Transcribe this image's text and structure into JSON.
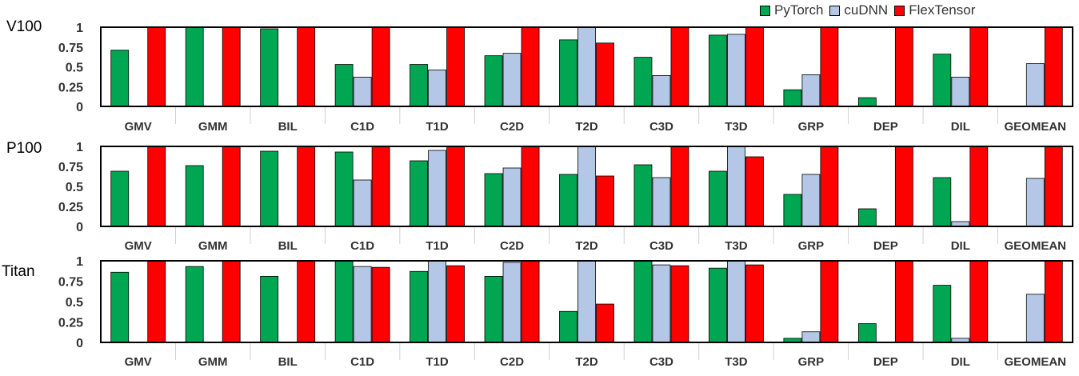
{
  "legend_placement": "top-right",
  "colors": {
    "PyTorch": "#00a651",
    "cuDNN": "#b4c7e7",
    "FlexTensor": "#ff0000"
  },
  "chart_data": [
    {
      "type": "bar",
      "panel_label": "V100",
      "categories": [
        "GMV",
        "GMM",
        "BIL",
        "C1D",
        "T1D",
        "C2D",
        "T2D",
        "C3D",
        "T3D",
        "GRP",
        "DEP",
        "DIL",
        "GEOMEAN"
      ],
      "ylim": [
        0,
        1
      ],
      "yticks": [
        "0",
        "0.25",
        "0.5",
        "0.75",
        "1"
      ],
      "series": [
        {
          "name": "PyTorch",
          "values": [
            0.71,
            1.0,
            0.98,
            0.53,
            0.53,
            0.64,
            0.84,
            0.62,
            0.9,
            0.21,
            0.11,
            0.66,
            0
          ]
        },
        {
          "name": "cuDNN",
          "values": [
            0,
            0,
            0,
            0.37,
            0.46,
            0.67,
            1.0,
            0.39,
            0.91,
            0.4,
            0,
            0.37,
            0.54
          ]
        },
        {
          "name": "FlexTensor",
          "values": [
            1,
            1,
            1,
            1,
            1,
            1,
            0.8,
            1,
            1,
            1,
            1,
            1,
            1
          ]
        }
      ]
    },
    {
      "type": "bar",
      "panel_label": "P100",
      "categories": [
        "GMV",
        "GMM",
        "BIL",
        "C1D",
        "T1D",
        "C2D",
        "T2D",
        "C3D",
        "T3D",
        "GRP",
        "DEP",
        "DIL",
        "GEOMEAN"
      ],
      "ylim": [
        0,
        1
      ],
      "yticks": [
        "0",
        "0.25",
        "0.5",
        "0.75",
        "1"
      ],
      "series": [
        {
          "name": "PyTorch",
          "values": [
            0.69,
            0.76,
            0.94,
            0.93,
            0.82,
            0.66,
            0.65,
            0.77,
            0.69,
            0.4,
            0.22,
            0.61,
            0
          ]
        },
        {
          "name": "cuDNN",
          "values": [
            0,
            0,
            0,
            0.58,
            0.95,
            0.73,
            1.0,
            0.61,
            1.0,
            0.65,
            0,
            0.06,
            0.6
          ]
        },
        {
          "name": "FlexTensor",
          "values": [
            1,
            1,
            1,
            1,
            1,
            1,
            0.63,
            1,
            0.87,
            1,
            1,
            1,
            1
          ]
        }
      ]
    },
    {
      "type": "bar",
      "panel_label": "Titan",
      "categories": [
        "GMV",
        "GMM",
        "BIL",
        "C1D",
        "T1D",
        "C2D",
        "T2D",
        "C3D",
        "T3D",
        "GRP",
        "DEP",
        "DIL",
        "GEOMEAN"
      ],
      "ylim": [
        0,
        1
      ],
      "yticks": [
        "0",
        "0.25",
        "0.5",
        "0.75",
        "1"
      ],
      "series": [
        {
          "name": "PyTorch",
          "values": [
            0.86,
            0.93,
            0.81,
            1.0,
            0.87,
            0.81,
            0.38,
            1.0,
            0.91,
            0.05,
            0.23,
            0.7,
            0
          ]
        },
        {
          "name": "cuDNN",
          "values": [
            0,
            0,
            0,
            0.93,
            1.0,
            0.98,
            1.0,
            0.95,
            1.0,
            0.13,
            0,
            0.05,
            0.59
          ]
        },
        {
          "name": "FlexTensor",
          "values": [
            1,
            1,
            1,
            0.92,
            0.94,
            1,
            0.47,
            0.94,
            0.95,
            1,
            1,
            1,
            1
          ]
        }
      ]
    }
  ]
}
